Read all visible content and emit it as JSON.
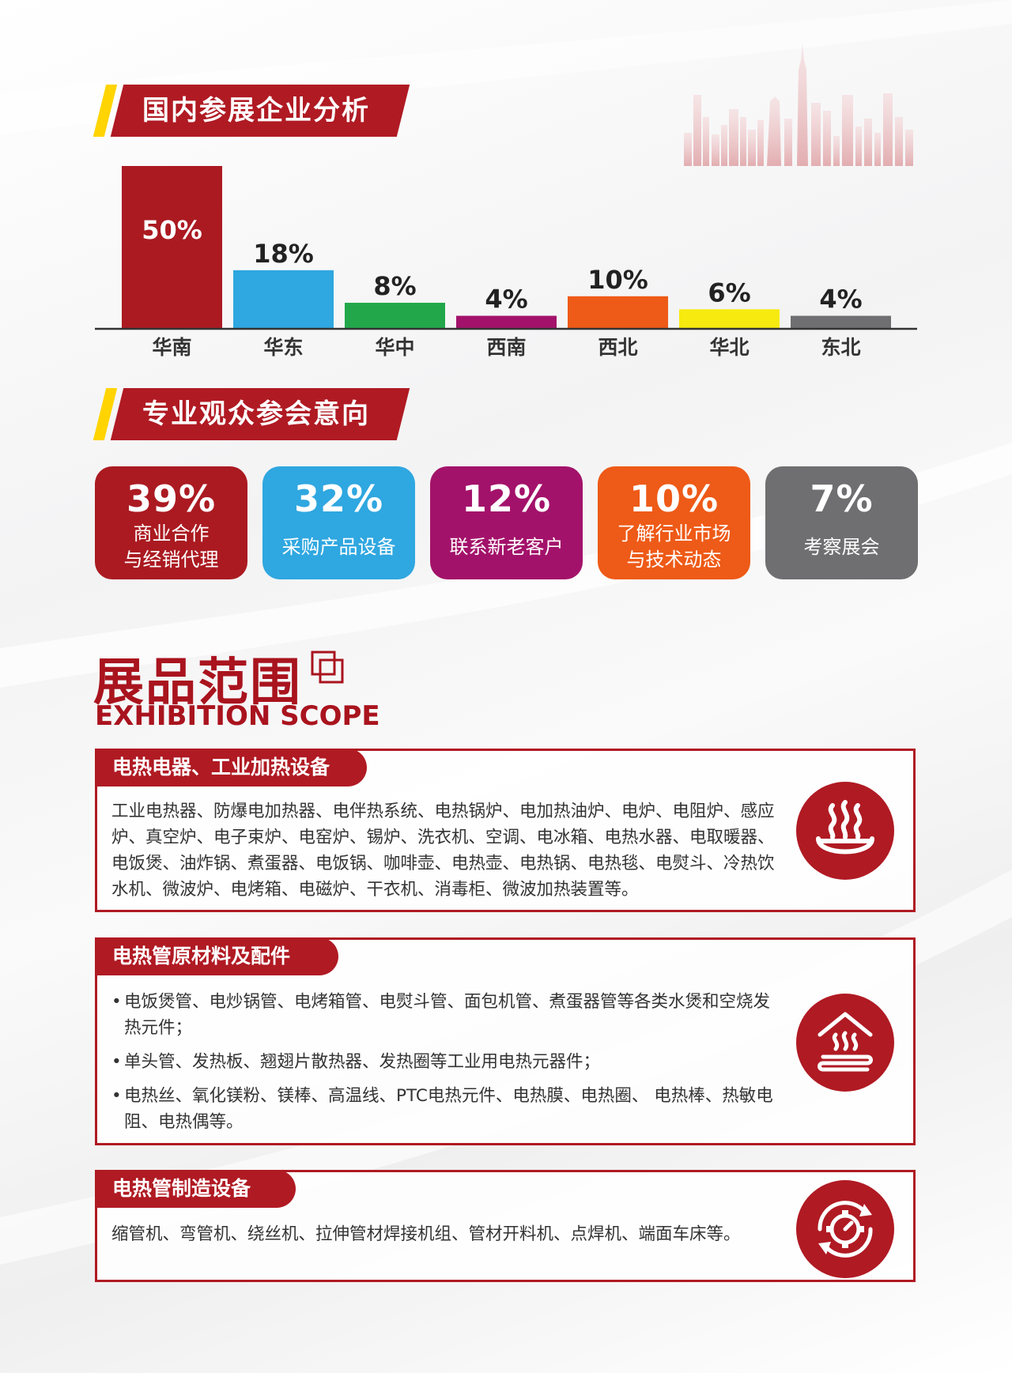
{
  "section1": {
    "title": "国内参展企业分析"
  },
  "section2": {
    "title": "专业观众参会意向"
  },
  "chart_data": {
    "type": "bar",
    "title": "",
    "xlabel": "",
    "ylabel": "",
    "unit": "%",
    "categories": [
      "华南",
      "华东",
      "华中",
      "西南",
      "西北",
      "华北",
      "东北"
    ],
    "values": [
      50,
      18,
      8,
      4,
      10,
      6,
      4
    ],
    "labels": [
      "50%",
      "18%",
      "8%",
      "4%",
      "10%",
      "6%",
      "4%"
    ],
    "colors": [
      "#ab1a21",
      "#2fa7e0",
      "#22a84a",
      "#a3126a",
      "#ee5a17",
      "#f6ea0e",
      "#6f6f71"
    ],
    "ylim": [
      0,
      50
    ],
    "grid": false,
    "legend": "none"
  },
  "cards": [
    {
      "pct": "39%",
      "text": "商业合作\n与经销代理",
      "color": "#ab1a21"
    },
    {
      "pct": "32%",
      "text": "采购产品设备",
      "color": "#2fa7e0"
    },
    {
      "pct": "12%",
      "text": "联系新老客户",
      "color": "#a3126a"
    },
    {
      "pct": "10%",
      "text": "了解行业市场\n与技术动态",
      "color": "#ee5a17"
    },
    {
      "pct": "7%",
      "text": "考察展会",
      "color": "#6f6f71"
    }
  ],
  "scope": {
    "title_cn": "展品范围",
    "title_en": "EXHIBITION SCOPE"
  },
  "boxes": [
    {
      "tab": "电热电器、工业加热设备",
      "text": "工业电热器、防爆电加热器、电伴热系统、电热锅炉、电加热油炉、电炉、电阻炉、感应炉、真空炉、电子束炉、电窑炉、锡炉、洗衣机、空调、电冰箱、电热水器、电取暖器、电饭煲、油炸锅、煮蛋器、电饭锅、咖啡壶、电热壶、电热锅、电热毯、电熨斗、冷热饮水机、微波炉、电烤箱、电磁炉、干衣机、消毒柜、微波加热装置等。",
      "icon": "steam-bowl-icon"
    },
    {
      "tab": "电热管原材料及配件",
      "items": [
        "电饭煲管、电炒锅管、电烤箱管、电熨斗管、面包机管、煮蛋器管等各类水煲和空烧发热元件；",
        "单头管、发热板、翘翅片散热器、发热圈等工业用电热元器件；",
        "电热丝、氧化镁粉、镁棒、高温线、PTC电热元件、电热膜、电热圈、 电热棒、热敏电阻、电热偶等。"
      ],
      "icon": "floor-heating-icon"
    },
    {
      "tab": "电热管制造设备",
      "text": "缩管机、弯管机、绕丝机、拉伸管材焊接机组、管材开料机、点焊机、端面车床等。",
      "icon": "gear-cycle-icon"
    }
  ]
}
